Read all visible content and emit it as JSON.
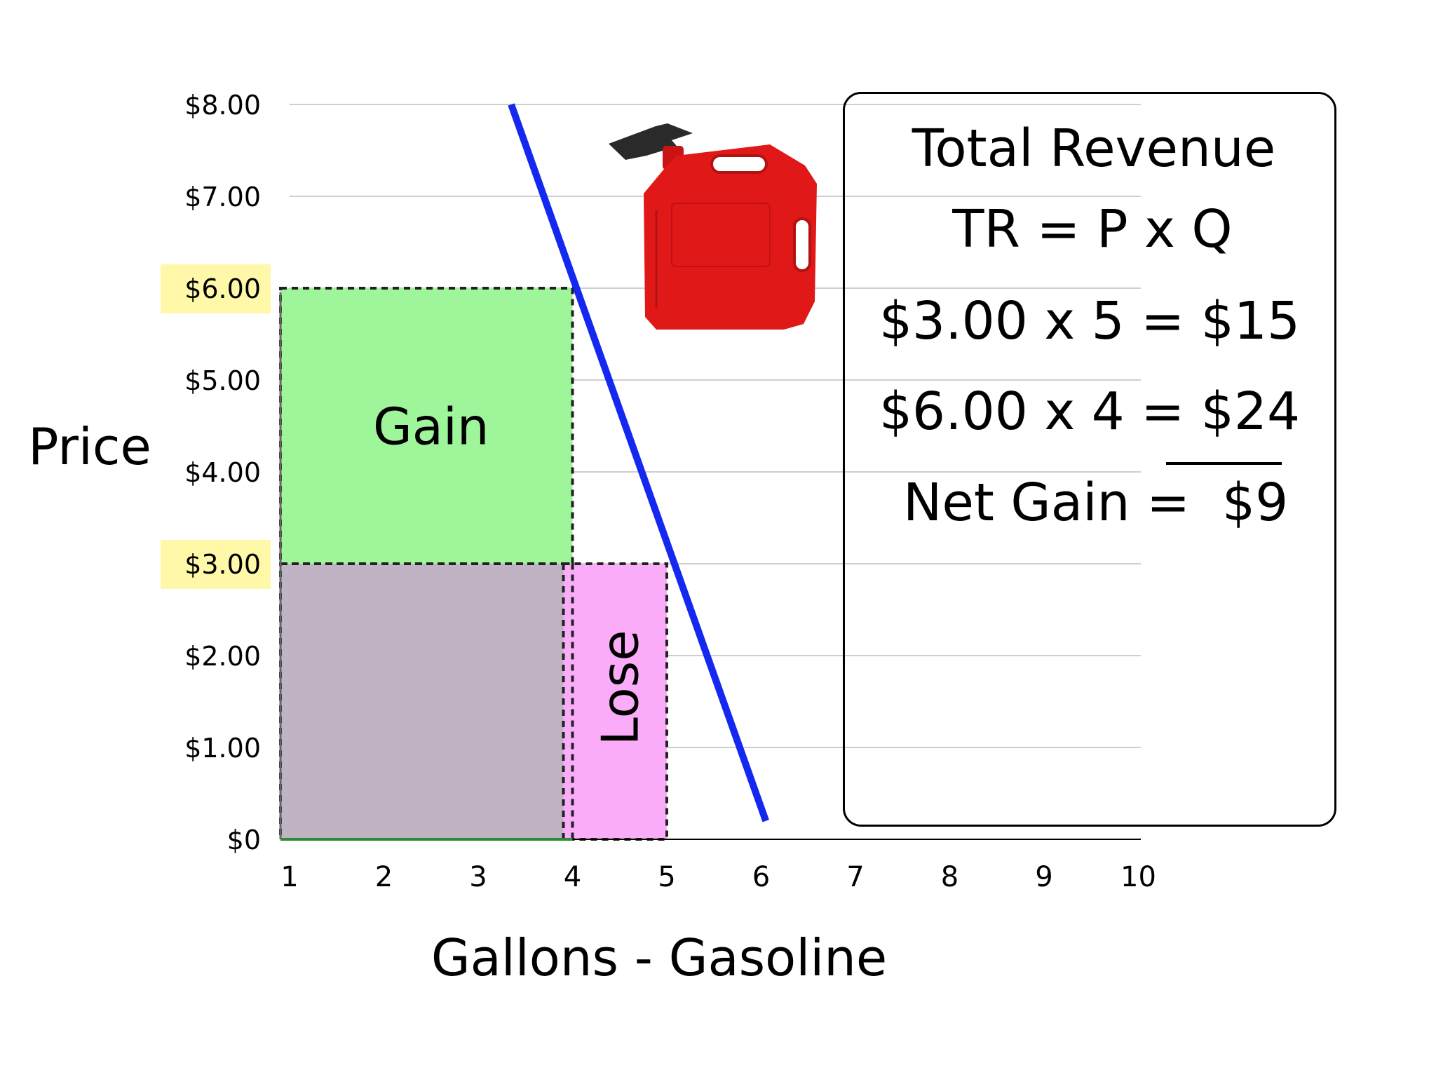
{
  "chart_data": {
    "type": "area",
    "title": "",
    "xlabel": "Gallons - Gasoline",
    "ylabel": "Price",
    "x_ticks": [
      "1",
      "2",
      "3",
      "4",
      "5",
      "6",
      "7",
      "8",
      "9",
      "10"
    ],
    "y_ticks": [
      "$0",
      "$1.00",
      "$2.00",
      "$3.00",
      "$4.00",
      "$5.00",
      "$6.00",
      "$7.00",
      "$8.00"
    ],
    "highlighted_y_ticks": [
      "$3.00",
      "$6.00"
    ],
    "xlim": [
      1,
      10
    ],
    "ylim": [
      0,
      8
    ],
    "grid": true,
    "demand_line": {
      "points": [
        [
          3.35,
          8.0
        ],
        [
          6.05,
          0.2
        ]
      ],
      "color": "#1428f0"
    },
    "regions": [
      {
        "name": "Gain",
        "label": "Gain",
        "x": [
          1,
          4
        ],
        "y": [
          3,
          6
        ],
        "color": "#9ef59a"
      },
      {
        "name": "Retained",
        "label": "",
        "x": [
          1,
          4
        ],
        "y": [
          0,
          3
        ],
        "color": "#c0b3c3"
      },
      {
        "name": "Lose",
        "label": "Lose",
        "x": [
          4,
          5
        ],
        "y": [
          0,
          3
        ],
        "color": "#fbacf9"
      }
    ]
  },
  "revenue_box": {
    "title": "Total Revenue",
    "formula": "TR = P x Q",
    "line1": "$3.00 x 5 = $15",
    "line2": "$6.00 x 4 = $24",
    "net_label": "Net Gain =",
    "net_value": "$9"
  },
  "colors": {
    "highlight": "#fff8a8",
    "gridline": "#bdbdbd",
    "demand": "#1428f0",
    "gain": "#9ef59a",
    "retained": "#c0b3c3",
    "lose": "#fbacf9",
    "gas_can": "#e01818"
  },
  "icons": {
    "gas_can": "gas-can-icon"
  }
}
